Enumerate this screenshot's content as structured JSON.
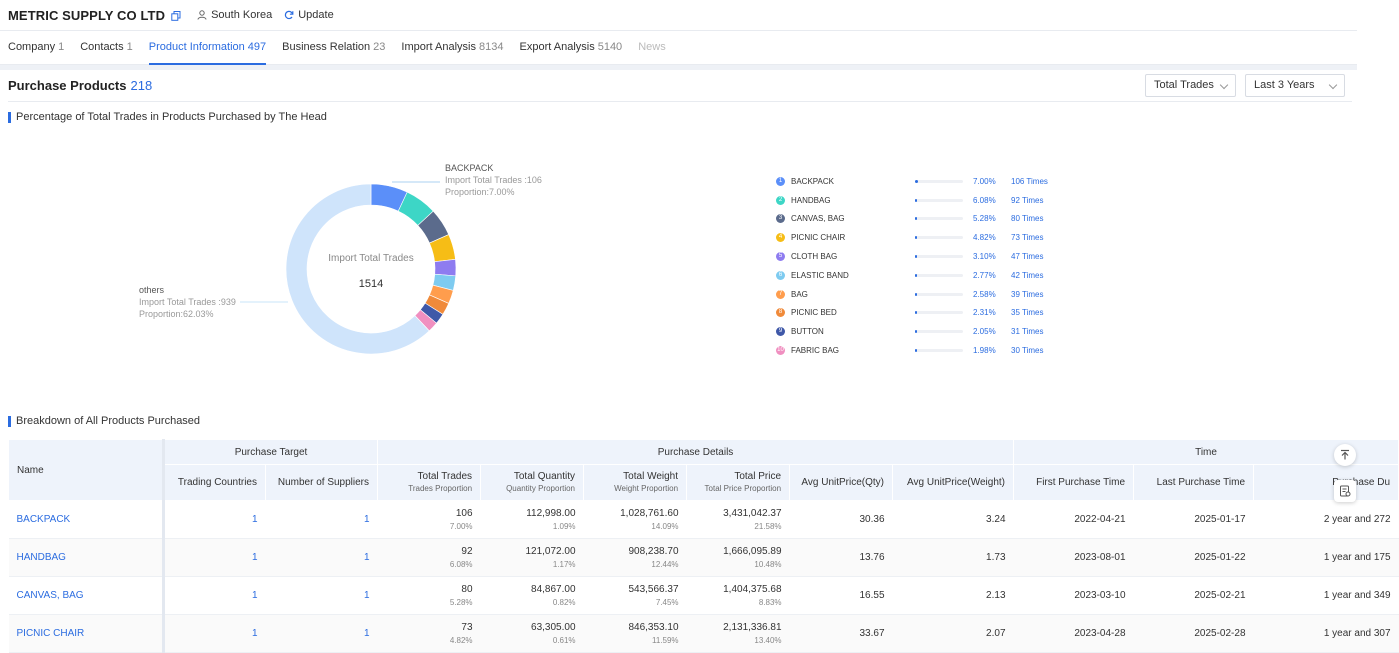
{
  "header": {
    "company_name": "METRIC SUPPLY CO LTD",
    "country": "South Korea",
    "update_label": "Update"
  },
  "tabs": [
    {
      "label": "Company",
      "count": "1"
    },
    {
      "label": "Contacts",
      "count": "1"
    },
    {
      "label": "Product Information",
      "count": "497"
    },
    {
      "label": "Business Relation",
      "count": "23"
    },
    {
      "label": "Import Analysis",
      "count": "8134"
    },
    {
      "label": "Export Analysis",
      "count": "5140"
    },
    {
      "label": "News",
      "count": ""
    }
  ],
  "section": {
    "title": "Purchase Products",
    "count": "218",
    "metric_select": "Total Trades",
    "period_select": "Last 3 Years"
  },
  "pie_section": {
    "title": "Percentage of Total Trades in Products Purchased by The Head",
    "center_label": "Import Total Trades",
    "center_value": "1514",
    "top_callout": {
      "name": "BACKPACK",
      "trades": "Import Total Trades :106",
      "proportion": "Proportion:7.00%"
    },
    "others_callout": {
      "name": "others",
      "trades": "Import Total Trades :939",
      "proportion": "Proportion:62.03%"
    }
  },
  "chart_data": {
    "type": "pie",
    "title": "Percentage of Total Trades in Products Purchased by The Head",
    "total": 1514,
    "slices": [
      {
        "label": "BACKPACK",
        "value": 106,
        "percent": 7.0,
        "color": "#5b8ff9"
      },
      {
        "label": "HANDBAG",
        "value": 92,
        "percent": 6.08,
        "color": "#3dd6c6"
      },
      {
        "label": "CANVAS, BAG",
        "value": 80,
        "percent": 5.28,
        "color": "#5b6b8c"
      },
      {
        "label": "PICNIC CHAIR",
        "value": 73,
        "percent": 4.82,
        "color": "#f6bd16"
      },
      {
        "label": "CLOTH BAG",
        "value": 47,
        "percent": 3.1,
        "color": "#8e7cf0"
      },
      {
        "label": "ELASTIC BAND",
        "value": 42,
        "percent": 2.77,
        "color": "#7ecbf0"
      },
      {
        "label": "BAG",
        "value": 39,
        "percent": 2.58,
        "color": "#ff9d4d"
      },
      {
        "label": "PICNIC BED",
        "value": 35,
        "percent": 2.31,
        "color": "#f08a3a"
      },
      {
        "label": "BUTTON",
        "value": 31,
        "percent": 2.05,
        "color": "#3f58a8"
      },
      {
        "label": "FABRIC BAG",
        "value": 30,
        "percent": 1.98,
        "color": "#f08fc0"
      },
      {
        "label": "others",
        "value": 939,
        "percent": 62.03,
        "color": "#cfe4fb"
      }
    ]
  },
  "legend": [
    {
      "index": "1",
      "name": "BACKPACK",
      "pct": "7.00%",
      "times": "106  Times",
      "color": "#5b8ff9"
    },
    {
      "index": "2",
      "name": "HANDBAG",
      "pct": "6.08%",
      "times": "92  Times",
      "color": "#3dd6c6"
    },
    {
      "index": "3",
      "name": "CANVAS, BAG",
      "pct": "5.28%",
      "times": "80  Times",
      "color": "#5b6b8c"
    },
    {
      "index": "4",
      "name": "PICNIC CHAIR",
      "pct": "4.82%",
      "times": "73  Times",
      "color": "#f6bd16"
    },
    {
      "index": "5",
      "name": "CLOTH BAG",
      "pct": "3.10%",
      "times": "47  Times",
      "color": "#8e7cf0"
    },
    {
      "index": "6",
      "name": "ELASTIC BAND",
      "pct": "2.77%",
      "times": "42  Times",
      "color": "#7ecbf0"
    },
    {
      "index": "7",
      "name": "BAG",
      "pct": "2.58%",
      "times": "39  Times",
      "color": "#ff9d4d"
    },
    {
      "index": "8",
      "name": "PICNIC BED",
      "pct": "2.31%",
      "times": "35  Times",
      "color": "#f08a3a"
    },
    {
      "index": "9",
      "name": "BUTTON",
      "pct": "2.05%",
      "times": "31  Times",
      "color": "#3f58a8"
    },
    {
      "index": "10",
      "name": "FABRIC BAG",
      "pct": "1.98%",
      "times": "30  Times",
      "color": "#f08fc0"
    }
  ],
  "breakdown": {
    "title": "Breakdown of All Products Purchased",
    "group_headers": {
      "target": "Purchase Target",
      "details": "Purchase Details",
      "time": "Time"
    },
    "columns": {
      "name": "Name",
      "countries": "Trading Countries",
      "suppliers": "Number of Suppliers",
      "trades": "Total Trades",
      "trades_sub": "Trades Proportion",
      "quantity": "Total Quantity",
      "quantity_sub": "Quantity Proportion",
      "weight": "Total Weight",
      "weight_sub": "Weight Proportion",
      "price": "Total Price",
      "price_sub": "Total Price Proportion",
      "unit_qty": "Avg UnitPrice(Qty)",
      "unit_weight": "Avg UnitPrice(Weight)",
      "first": "First Purchase Time",
      "last": "Last Purchase Time",
      "duration": "Purchase Du"
    },
    "rows": [
      {
        "name": "BACKPACK",
        "countries": "1",
        "suppliers": "1",
        "trades": "106",
        "trades_pct": "7.00%",
        "quantity": "112,998.00",
        "quantity_pct": "1.09%",
        "weight": "1,028,761.60",
        "weight_pct": "14.09%",
        "price": "3,431,042.37",
        "price_pct": "21.58%",
        "unit_qty": "30.36",
        "unit_weight": "3.24",
        "first": "2022-04-21",
        "last": "2025-01-17",
        "duration": "2 year and 272"
      },
      {
        "name": "HANDBAG",
        "countries": "1",
        "suppliers": "1",
        "trades": "92",
        "trades_pct": "6.08%",
        "quantity": "121,072.00",
        "quantity_pct": "1.17%",
        "weight": "908,238.70",
        "weight_pct": "12.44%",
        "price": "1,666,095.89",
        "price_pct": "10.48%",
        "unit_qty": "13.76",
        "unit_weight": "1.73",
        "first": "2023-08-01",
        "last": "2025-01-22",
        "duration": "1 year and 175"
      },
      {
        "name": "CANVAS, BAG",
        "countries": "1",
        "suppliers": "1",
        "trades": "80",
        "trades_pct": "5.28%",
        "quantity": "84,867.00",
        "quantity_pct": "0.82%",
        "weight": "543,566.37",
        "weight_pct": "7.45%",
        "price": "1,404,375.68",
        "price_pct": "8.83%",
        "unit_qty": "16.55",
        "unit_weight": "2.13",
        "first": "2023-03-10",
        "last": "2025-02-21",
        "duration": "1 year and 349"
      },
      {
        "name": "PICNIC CHAIR",
        "countries": "1",
        "suppliers": "1",
        "trades": "73",
        "trades_pct": "4.82%",
        "quantity": "63,305.00",
        "quantity_pct": "0.61%",
        "weight": "846,353.10",
        "weight_pct": "11.59%",
        "price": "2,131,336.81",
        "price_pct": "13.40%",
        "unit_qty": "33.67",
        "unit_weight": "2.07",
        "first": "2023-04-28",
        "last": "2025-02-28",
        "duration": "1 year and 307"
      }
    ]
  }
}
